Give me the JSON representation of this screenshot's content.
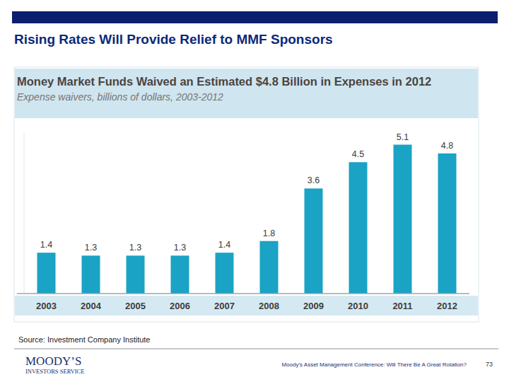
{
  "header": {
    "title": "Rising Rates Will Provide Relief to MMF Sponsors"
  },
  "chart_data": {
    "type": "bar",
    "title": "Money Market Funds Waived an Estimated $4.8 Billion in Expenses in 2012",
    "subtitle": "Expense waivers, billions of dollars, 2003-2012",
    "categories": [
      "2003",
      "2004",
      "2005",
      "2006",
      "2007",
      "2008",
      "2009",
      "2010",
      "2011",
      "2012"
    ],
    "values": [
      1.4,
      1.3,
      1.3,
      1.3,
      1.4,
      1.8,
      3.6,
      4.5,
      5.1,
      4.8
    ],
    "color": "#1aa3c4",
    "ylim": [
      0,
      5.5
    ],
    "data_labels": true,
    "tick_labels": "x"
  },
  "footer": {
    "source": "Source:  Investment Company Institute",
    "logo": [
      "MOODY’S",
      "INVESTORS SERVICE"
    ],
    "conference": "Moody’s Asset Management Conference: Will There Be A Great Rotation?",
    "page": 73
  }
}
